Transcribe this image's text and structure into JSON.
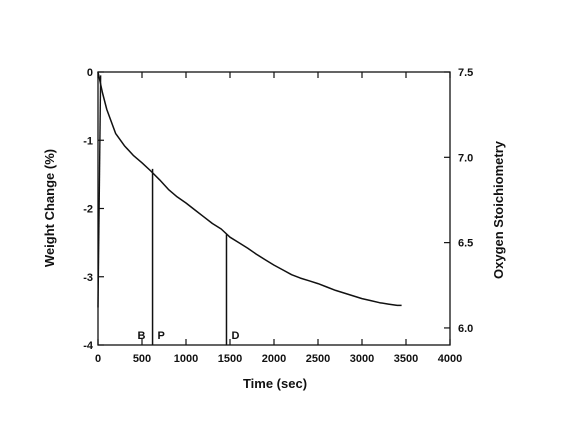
{
  "chart_data": {
    "type": "line",
    "xlabel": "Time (sec)",
    "ylabel": "Weight Change (%)",
    "y2label": "Oxygen Stoichiometry",
    "xlim": [
      0,
      4000
    ],
    "ylim": [
      -4,
      0
    ],
    "y2lim": [
      5.9,
      7.5
    ],
    "x_ticks": [
      0,
      500,
      1000,
      1500,
      2000,
      2500,
      3000,
      3500,
      4000
    ],
    "y_ticks": [
      0,
      -1,
      -2,
      -3,
      -4
    ],
    "y2_ticks": [
      {
        "label": "7.5",
        "value": 7.5
      },
      {
        "label": "7.0",
        "value": 7.0
      },
      {
        "label": "6.5",
        "value": 6.5
      },
      {
        "label": "6.0",
        "value": 6.0
      }
    ],
    "grid": false,
    "series": [
      {
        "x": [
          0,
          50,
          100,
          200,
          300,
          400,
          500,
          600,
          700,
          800,
          900,
          1000,
          1100,
          1200,
          1300,
          1400,
          1500,
          1600,
          1700,
          1800,
          1900,
          2000,
          2100,
          2200,
          2300,
          2400,
          2500,
          2600,
          2700,
          2800,
          2900,
          3000,
          3100,
          3200,
          3300,
          3400,
          3450
        ],
        "y": [
          0,
          -0.3,
          -0.55,
          -0.9,
          -1.08,
          -1.22,
          -1.33,
          -1.45,
          -1.58,
          -1.72,
          -1.83,
          -1.92,
          -2.02,
          -2.12,
          -2.22,
          -2.3,
          -2.42,
          -2.5,
          -2.58,
          -2.67,
          -2.75,
          -2.83,
          -2.9,
          -2.97,
          -3.02,
          -3.06,
          -3.1,
          -3.15,
          -3.2,
          -3.24,
          -3.28,
          -3.32,
          -3.35,
          -3.38,
          -3.4,
          -3.42,
          -3.42
        ]
      }
    ],
    "rise": {
      "x": [
        0,
        30
      ],
      "y": [
        -3.45,
        -0.05
      ]
    },
    "markers": [
      {
        "label": "B",
        "x": 550,
        "y_top": -1.45,
        "show_line": false
      },
      {
        "label": "P",
        "x": 620,
        "y_top": -1.42,
        "show_line": true
      },
      {
        "label": "D",
        "x": 1460,
        "y_top": -2.38,
        "show_line": true
      }
    ]
  }
}
